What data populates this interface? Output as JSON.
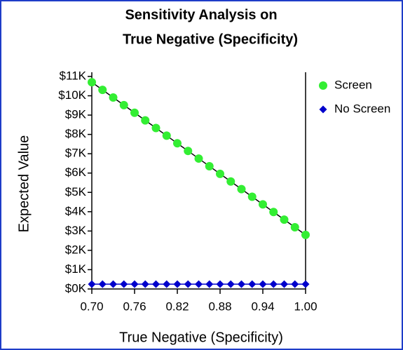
{
  "chart_data": {
    "type": "line",
    "title": [
      "Sensitivity Analysis on",
      "True Negative (Specificity)"
    ],
    "x_label": "True Negative (Specificity)",
    "y_label": "Expected Value",
    "x": [
      0.7,
      0.715,
      0.73,
      0.745,
      0.76,
      0.775,
      0.79,
      0.805,
      0.82,
      0.835,
      0.85,
      0.865,
      0.88,
      0.895,
      0.91,
      0.925,
      0.94,
      0.955,
      0.97,
      0.985,
      1.0
    ],
    "series": [
      {
        "name": "Screen",
        "color": "#33ee33",
        "line_color": "#000000",
        "marker": "circle",
        "values": [
          10700,
          10305,
          9910,
          9515,
          9120,
          8725,
          8330,
          7935,
          7540,
          7145,
          6750,
          6355,
          5960,
          5565,
          5170,
          4775,
          4380,
          3985,
          3590,
          3195,
          2800
        ]
      },
      {
        "name": "No Screen",
        "color": "#0000cc",
        "line_color": "#0000cc",
        "marker": "diamond",
        "values": [
          250,
          250,
          250,
          250,
          250,
          250,
          250,
          250,
          250,
          250,
          250,
          250,
          250,
          250,
          250,
          250,
          250,
          250,
          250,
          250,
          250
        ]
      }
    ],
    "xlim": [
      0.7,
      1.0
    ],
    "xticks": [
      {
        "value": 0.7,
        "label": "0.70"
      },
      0.76,
      0.82,
      0.88,
      0.94,
      {
        "value": 1.0,
        "label": "1.00"
      }
    ],
    "ylim": [
      0,
      11000
    ],
    "yticks": [
      {
        "value": 0,
        "label": "$0K"
      },
      {
        "value": 1000,
        "label": "$1K"
      },
      {
        "value": 2000,
        "label": "$2K"
      },
      {
        "value": 3000,
        "label": "$3K"
      },
      {
        "value": 4000,
        "label": "$4K"
      },
      {
        "value": 5000,
        "label": "$5K"
      },
      {
        "value": 6000,
        "label": "$6K"
      },
      {
        "value": 7000,
        "label": "$7K"
      },
      {
        "value": 8000,
        "label": "$8K"
      },
      {
        "value": 9000,
        "label": "$9K"
      },
      {
        "value": 10000,
        "label": "$10K"
      },
      {
        "value": 11000,
        "label": "$11K"
      }
    ],
    "grid": false,
    "legend": "right"
  }
}
